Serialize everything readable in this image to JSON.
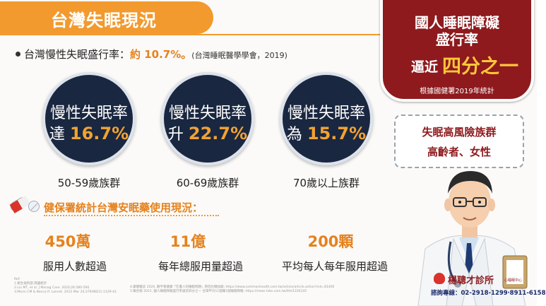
{
  "header": {
    "title": "台灣失眠現況"
  },
  "badge": {
    "line1": "國人睡眠障礙",
    "line2": "盛行率",
    "prefix": "逼近",
    "highlight": "四分之一",
    "source": "根據國健署2019年統計"
  },
  "prevalence": {
    "label": "台灣慢性失眠盛行率：",
    "value": "約 10.7%",
    "suffix": "。",
    "citation": "(台灣睡眠醫學學會，2019)"
  },
  "circles": [
    {
      "line1": "慢性失眠率",
      "prefix": "達",
      "value": "16.7%",
      "group": "50-59歲族群"
    },
    {
      "line1": "慢性失眠率",
      "prefix": "升",
      "value": "22.7%",
      "group": "60-69歲族群"
    },
    {
      "line1": "慢性失眠率",
      "prefix": "為",
      "value": "15.7%",
      "group": "70歲以上族群"
    }
  ],
  "risk_bubble": {
    "line1": "失眠高風險族群",
    "line2": "高齡者、女性"
  },
  "nhi_section": {
    "title": "健保署統計台灣安眠藥使用現況：",
    "stats": [
      {
        "number": "450萬",
        "label": "服用人數超過"
      },
      {
        "number": "11億",
        "label": "每年總服用量超過"
      },
      {
        "number": "200顆",
        "label": "平均每人每年服用超過"
      }
    ]
  },
  "references": {
    "col1": [
      "Ref:",
      "1.衛生福利部,我國統計",
      "2.Liu MT, et al. J Manag Care. 2020;26:580-590.",
      "3.Morin CM & Benca R. Lancet. 2012 Mar 24;379(9821):1129-41."
    ],
    "col2": [
      "4.康健雜誌 2020, 數字看健康「在臺人的睡眠問題」原因也懶加劇; https://www.commonhealth.com.tw/article/article.action?nid=81400",
      "5.聯合報 2021, 國人睡眠障礙盛行率逼近四分之一 台灣平均11個睡1個睡眠障礙; https://news.tvbs.com.tw/life/1226145"
    ]
  },
  "clinic": {
    "name": "楊聰才診所",
    "subtitle": "心睡眠中心",
    "phone_label": "諮詢專線：",
    "phone": "02-2918-1299‧8911-6158"
  },
  "icons": [
    "pill-icon",
    "tablet-icon",
    "doctor-illustration",
    "heart-logo-icon"
  ],
  "colors": {
    "accent": "#f29a2e",
    "badge": "#8e1a1e",
    "circle": "#1a2740",
    "highlight": "#ffc73a"
  }
}
